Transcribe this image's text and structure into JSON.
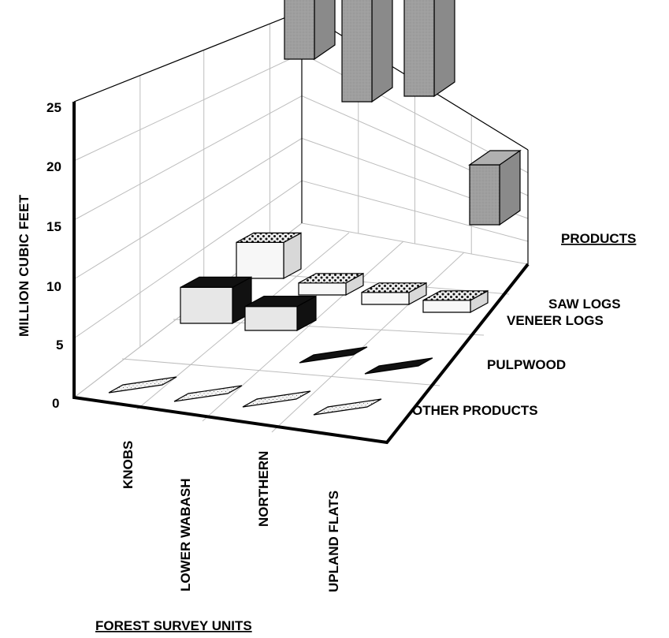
{
  "colors": {
    "background": "#ffffff",
    "axis": "#000000",
    "grid": "#bdbdbd",
    "saw_logs": "#9f9f9f",
    "veneer_logs": "#eeeeee",
    "pulpwood": "#1a1a1a",
    "other_products": "#f3f3f3",
    "text": "#000000"
  },
  "chart_data": {
    "type": "bar",
    "title": "",
    "subtitle": "",
    "xlabel": "FOREST SURVEY UNITS",
    "ylabel": "MILLION CUBIC FEET",
    "zlabel": "PRODUCTS",
    "categories": [
      "KNOBS",
      "LOWER WABASH",
      "NORTHERN",
      "UPLAND FLATS"
    ],
    "series": [
      {
        "name": "SAW LOGS",
        "values": [
          25,
          19,
          20,
          5
        ]
      },
      {
        "name": "VENEER LOGS",
        "values": [
          3,
          1,
          1,
          1
        ]
      },
      {
        "name": "PULPWOOD",
        "values": [
          3,
          2,
          0,
          0
        ]
      },
      {
        "name": "OTHER PRODUCTS",
        "values": [
          0,
          0,
          0,
          0
        ]
      }
    ],
    "ylim": [
      0,
      25
    ],
    "y_ticks": [
      "0",
      "5",
      "10",
      "15",
      "20",
      "25"
    ],
    "grid": true,
    "legend": "right"
  }
}
